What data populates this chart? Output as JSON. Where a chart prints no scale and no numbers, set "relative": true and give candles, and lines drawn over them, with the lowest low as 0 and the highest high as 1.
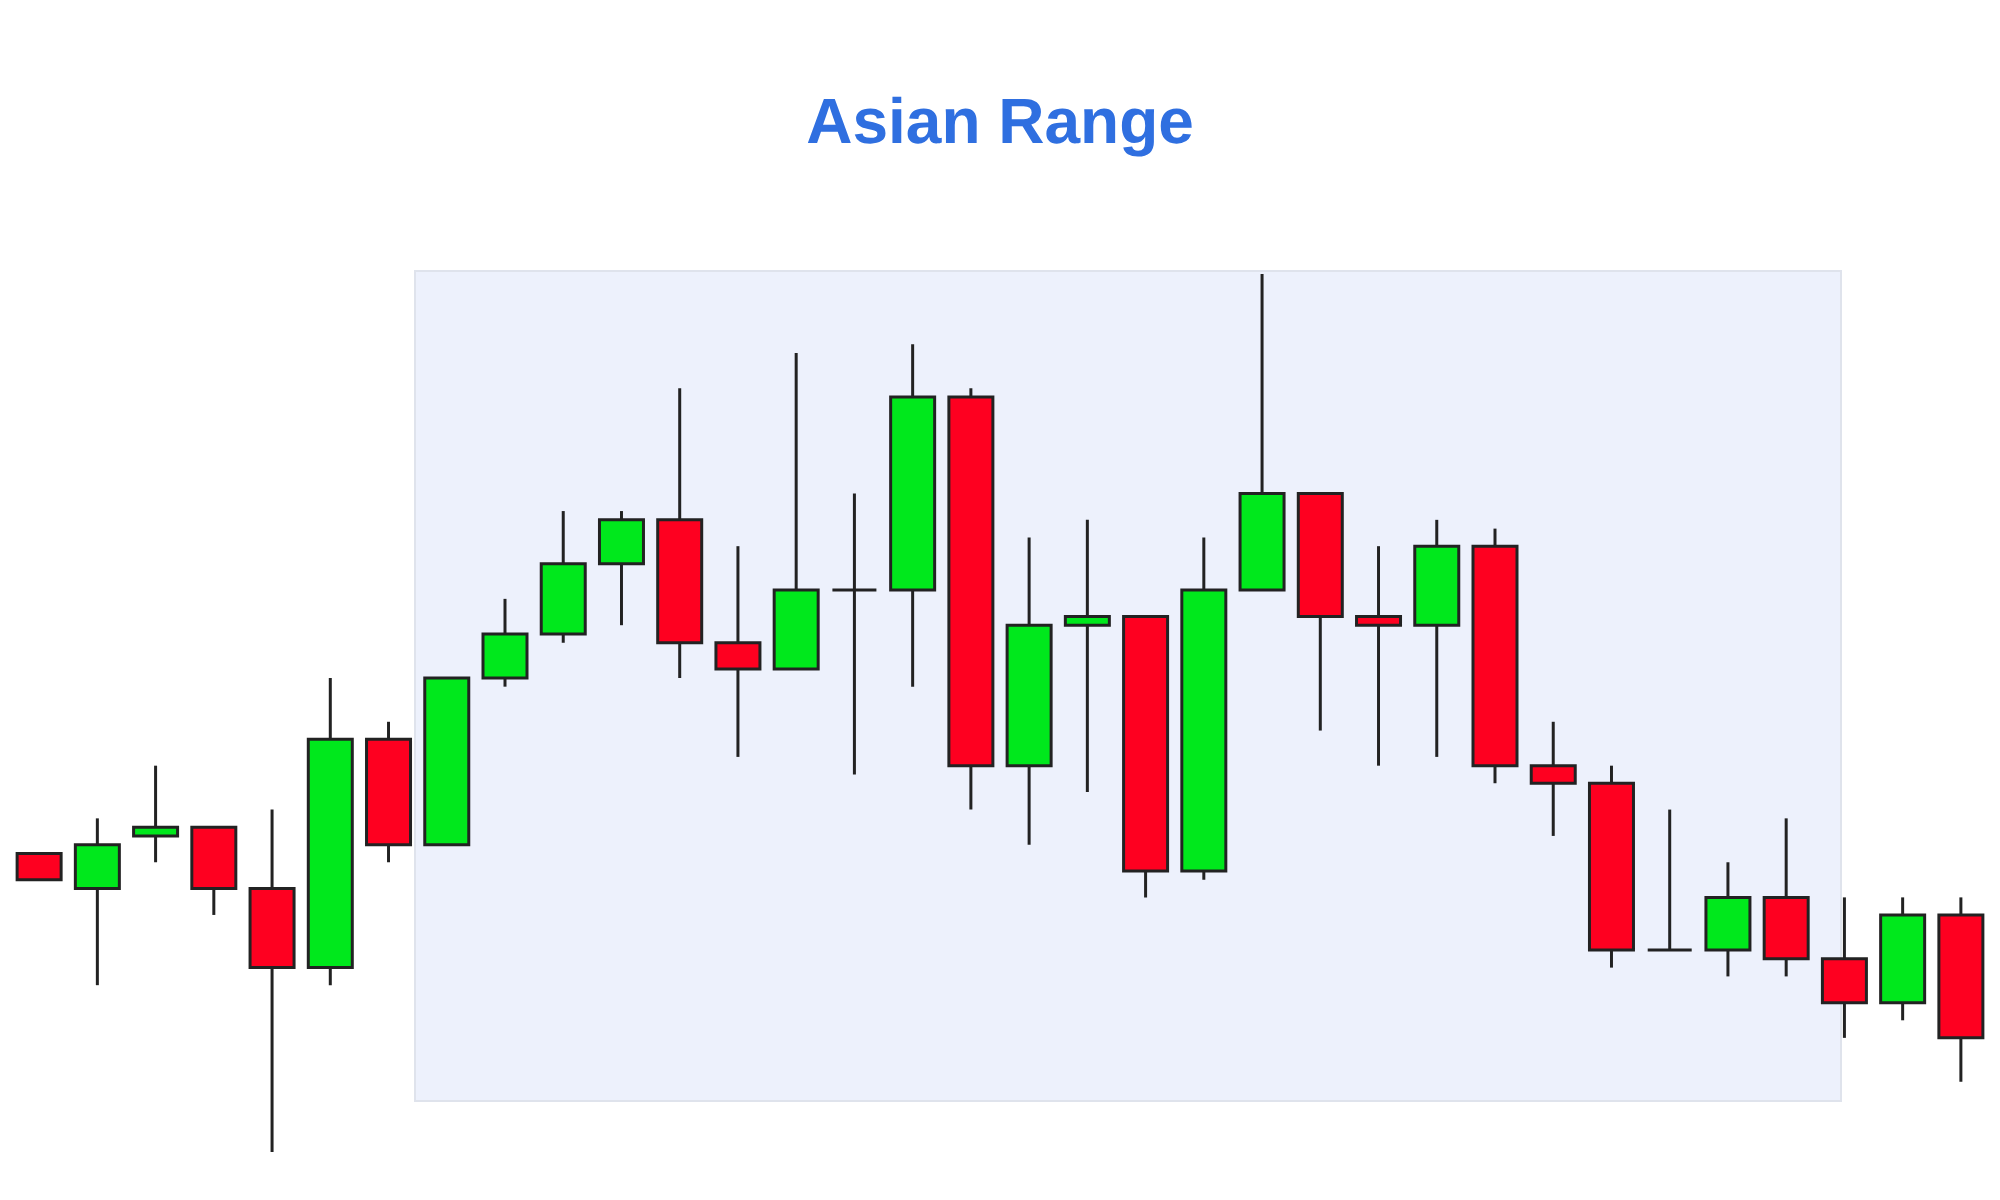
{
  "chart_data": {
    "type": "candlestick",
    "title": "Asian Range",
    "relative": true,
    "categories": [
      null,
      null,
      null,
      null,
      null,
      null,
      null,
      null,
      null,
      null,
      null,
      null,
      null,
      null,
      null,
      null,
      null,
      null,
      null,
      null,
      null,
      null,
      null,
      null,
      null,
      null,
      null,
      null,
      null,
      null,
      null,
      null,
      null,
      null
    ],
    "ohlc": [
      [
        0.34,
        0.34,
        0.31,
        0.31
      ],
      [
        0.3,
        0.38,
        0.19,
        0.35
      ],
      [
        0.36,
        0.44,
        0.33,
        0.37
      ],
      [
        0.37,
        0.37,
        0.27,
        0.3
      ],
      [
        0.3,
        0.39,
        0,
        0.21
      ],
      [
        0.21,
        0.54,
        0.19,
        0.47
      ],
      [
        0.47,
        0.49,
        0.33,
        0.35
      ],
      [
        0.35,
        0.54,
        0.35,
        0.54
      ],
      [
        0.54,
        0.63,
        0.53,
        0.59
      ],
      [
        0.59,
        0.73,
        0.58,
        0.67
      ],
      [
        0.67,
        0.73,
        0.6,
        0.72
      ],
      [
        0.72,
        0.87,
        0.54,
        0.58
      ],
      [
        0.58,
        0.69,
        0.45,
        0.55
      ],
      [
        0.55,
        0.91,
        0.55,
        0.64
      ],
      [
        0.64,
        0.75,
        0.43,
        0.64
      ],
      [
        0.64,
        0.92,
        0.53,
        0.86
      ],
      [
        0.86,
        0.87,
        0.39,
        0.44
      ],
      [
        0.44,
        0.7,
        0.35,
        0.6
      ],
      [
        0.6,
        0.72,
        0.41,
        0.61
      ],
      [
        0.61,
        0.61,
        0.29,
        0.32
      ],
      [
        0.32,
        0.7,
        0.31,
        0.64
      ],
      [
        0.64,
        1,
        0.64,
        0.75
      ],
      [
        0.75,
        0.75,
        0.48,
        0.61
      ],
      [
        0.61,
        0.69,
        0.44,
        0.6
      ],
      [
        0.6,
        0.72,
        0.45,
        0.69
      ],
      [
        0.69,
        0.71,
        0.42,
        0.44
      ],
      [
        0.44,
        0.49,
        0.36,
        0.42
      ],
      [
        0.42,
        0.44,
        0.21,
        0.23
      ],
      [
        0.23,
        0.39,
        0.23,
        0.23
      ],
      [
        0.23,
        0.33,
        0.2,
        0.29
      ],
      [
        0.29,
        0.38,
        0.2,
        0.22
      ],
      [
        0.22,
        0.29,
        0.13,
        0.17
      ],
      [
        0.17,
        0.29,
        0.15,
        0.27
      ],
      [
        0.27,
        0.29,
        0.08,
        0.13
      ]
    ],
    "colors": [
      "#fe0020",
      "#00e81c",
      "#00e81c",
      "#fe0020",
      "#fe0020",
      "#00e81c",
      "#fe0020",
      "#00e81c",
      "#00e81c",
      "#00e81c",
      "#00e81c",
      "#fe0020",
      "#fe0020",
      "#00e81c",
      "#222222",
      "#00e81c",
      "#fe0020",
      "#00e81c",
      "#00e81c",
      "#fe0020",
      "#00e81c",
      "#00e81c",
      "#fe0020",
      "#fe0020",
      "#00e81c",
      "#fe0020",
      "#fe0020",
      "#fe0020",
      "#222222",
      "#00e81c",
      "#fe0020",
      "#fe0020",
      "#00e81c",
      "#fe0020"
    ],
    "tick_labels": false
  }
}
